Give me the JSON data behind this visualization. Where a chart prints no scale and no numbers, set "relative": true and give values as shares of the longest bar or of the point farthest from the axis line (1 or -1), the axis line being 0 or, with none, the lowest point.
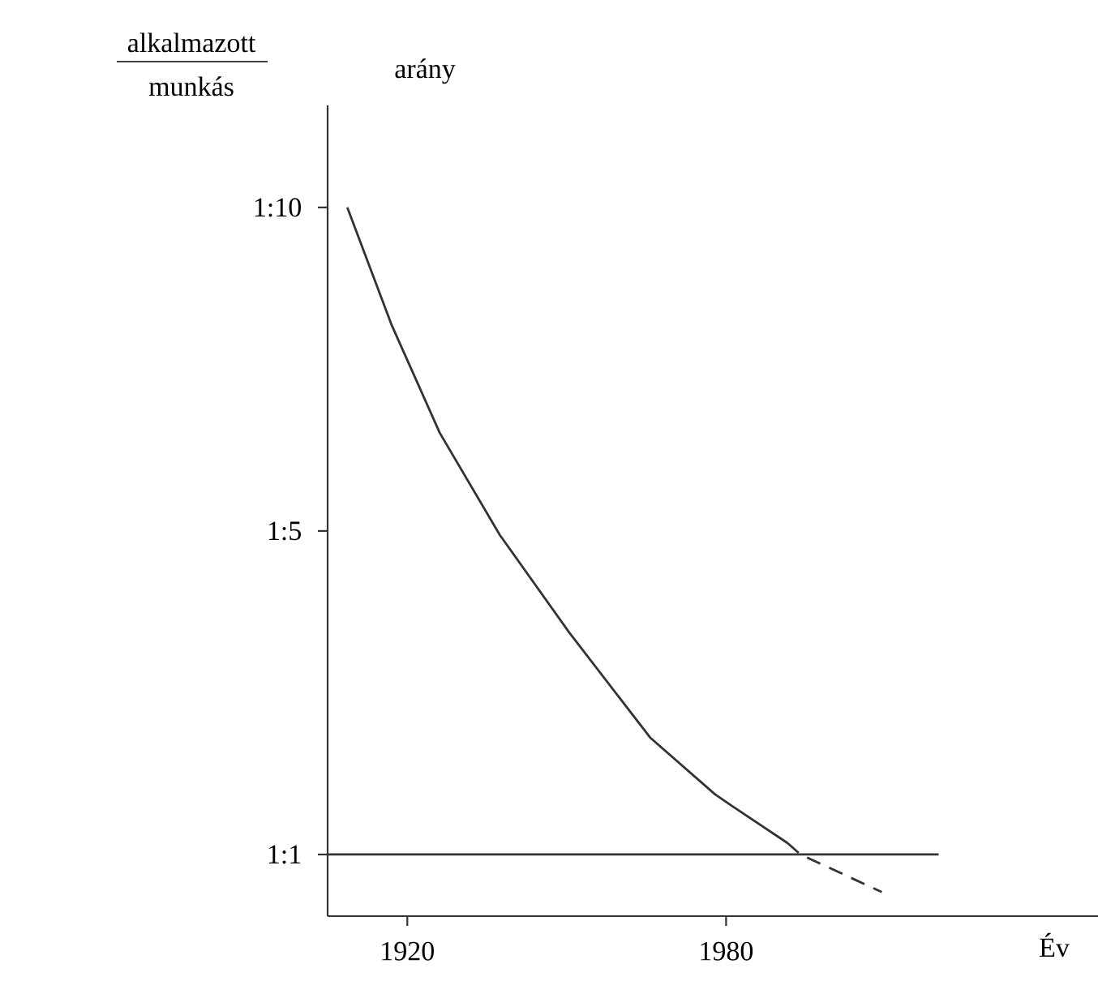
{
  "chart_data": {
    "type": "line",
    "relative": true,
    "xlabel": "Év",
    "ylabel": "arány",
    "annotations": [
      "alkalmazott",
      "munkás",
      "1:10",
      "1:5",
      "1:1"
    ],
    "xlim": [
      1905,
      2050
    ],
    "xticks": [
      1920,
      1980
    ],
    "series": [
      {
        "color": "#333333",
        "line_style": "solid",
        "x": [
          1908.7,
          1917,
          1926.1,
          1937.4,
          1950.5,
          1965.7,
          1977.9,
          1981,
          1991.6
        ],
        "values": [
          1.0,
          0.835,
          0.682,
          0.538,
          0.4,
          0.252,
          0.172,
          0.156,
          0.103
        ]
      },
      {
        "color": "#333333",
        "line_style": "dashed",
        "x": [
          1991.6,
          1994,
          2009.3
        ],
        "values": [
          0.103,
          0.087,
          0.034
        ]
      },
      {
        "color": "#333333",
        "line_style": "solid",
        "x": [
          1905,
          2020
        ],
        "values": [
          0.087,
          0.087
        ]
      }
    ]
  }
}
